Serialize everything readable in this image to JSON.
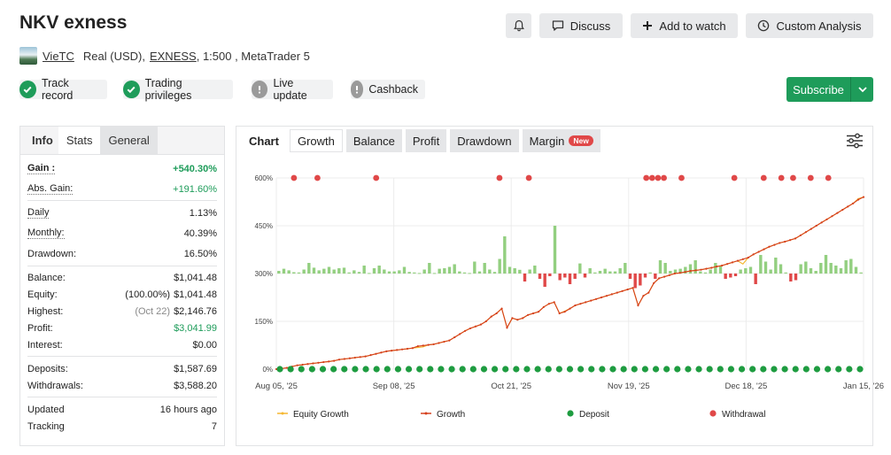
{
  "title": "NKV exness",
  "header_buttons": {
    "discuss": "Discuss",
    "add_to_watch": "Add to watch",
    "custom_analysis": "Custom Analysis"
  },
  "account": {
    "user": "VieTC",
    "type": "Real (USD),",
    "broker": "EXNESS",
    "leverage_platform": ", 1:500 , MetaTrader 5"
  },
  "badges": [
    {
      "label": "Track record",
      "status": "ok",
      "color": "#1e9c5a"
    },
    {
      "label": "Trading privileges",
      "status": "ok",
      "color": "#1e9c5a"
    },
    {
      "label": "Live update",
      "status": "warn",
      "color": "#9a9a9a"
    },
    {
      "label": "Cashback",
      "status": "warn",
      "color": "#9a9a9a"
    }
  ],
  "subscribe": {
    "label": "Subscribe"
  },
  "info_tabs": [
    "Info",
    "Stats",
    "General"
  ],
  "stats": {
    "gain": {
      "label": "Gain :",
      "value": "+540.30%"
    },
    "abs_gain": {
      "label": "Abs. Gain:",
      "value": "+191.60%"
    },
    "daily": {
      "label": "Daily",
      "value": "1.13%"
    },
    "monthly": {
      "label": "Monthly:",
      "value": "40.39%"
    },
    "drawdown": {
      "label": "Drawdown:",
      "value": "16.50%"
    },
    "balance": {
      "label": "Balance:",
      "value": "$1,041.48"
    },
    "equity": {
      "label": "Equity:",
      "pct": "(100.00%)",
      "value": "$1,041.48"
    },
    "highest": {
      "label": "Highest:",
      "date": "(Oct 22)",
      "value": "$2,146.76"
    },
    "profit": {
      "label": "Profit:",
      "value": "$3,041.99"
    },
    "interest": {
      "label": "Interest:",
      "value": "$0.00"
    },
    "deposits": {
      "label": "Deposits:",
      "value": "$1,587.69"
    },
    "withdrawals": {
      "label": "Withdrawals:",
      "value": "$3,588.20"
    },
    "updated": {
      "label": "Updated",
      "value": "16 hours ago"
    },
    "tracking": {
      "label": "Tracking",
      "value": "7"
    }
  },
  "chart_tabs": {
    "chart": "Chart",
    "growth": "Growth",
    "balance": "Balance",
    "profit": "Profit",
    "drawdown": "Drawdown",
    "margin": "Margin",
    "new_badge": "New"
  },
  "chart_data": {
    "type": "line",
    "x_tick_labels": [
      "Aug 05, '25",
      "Sep 08, '25",
      "Oct 21, '25",
      "Nov 19, '25",
      "Dec 18, '25",
      "Jan 15, '26"
    ],
    "y_tick_labels": [
      "0%",
      "150%",
      "300%",
      "450%",
      "600%"
    ],
    "ylim": [
      0,
      600
    ],
    "grid": true,
    "legend_position": "bottom",
    "legend": [
      "Equity Growth",
      "Growth",
      "Deposit",
      "Withdrawal"
    ],
    "colors": {
      "equity": "#f5b731",
      "growth": "#d5401d",
      "deposit": "#1e9c40",
      "withdrawal": "#e04848",
      "bar_pos": "#93cf80",
      "bar_neg": "#e04848"
    },
    "growth": [
      0,
      2,
      4,
      8,
      12,
      14,
      16,
      18,
      20,
      22,
      24,
      26,
      30,
      32,
      34,
      36,
      38,
      40,
      44,
      48,
      52,
      56,
      58,
      60,
      62,
      64,
      66,
      72,
      74,
      76,
      78,
      82,
      86,
      90,
      100,
      110,
      120,
      128,
      134,
      140,
      150,
      165,
      175,
      190,
      130,
      160,
      155,
      160,
      170,
      175,
      180,
      195,
      205,
      210,
      175,
      180,
      190,
      200,
      205,
      210,
      215,
      220,
      225,
      230,
      235,
      240,
      245,
      250,
      255,
      200,
      230,
      240,
      270,
      285,
      290,
      295,
      300,
      302,
      305,
      308,
      310,
      312,
      315,
      318,
      322,
      325,
      330,
      335,
      340,
      345,
      350,
      360,
      368,
      376,
      384,
      390,
      396,
      400,
      405,
      410,
      420,
      430,
      440,
      450,
      460,
      470,
      480,
      490,
      500,
      510,
      520,
      532,
      540
    ],
    "equity": [
      0,
      2,
      4,
      8,
      12,
      14,
      16,
      18,
      20,
      22,
      24,
      26,
      30,
      32,
      34,
      36,
      38,
      40,
      44,
      48,
      52,
      56,
      58,
      60,
      62,
      64,
      66,
      68,
      70,
      76,
      78,
      82,
      86,
      90,
      100,
      110,
      120,
      128,
      134,
      140,
      150,
      165,
      175,
      190,
      130,
      160,
      155,
      160,
      170,
      175,
      180,
      195,
      205,
      210,
      175,
      182,
      190,
      200,
      205,
      210,
      215,
      220,
      225,
      230,
      235,
      240,
      245,
      250,
      255,
      200,
      230,
      240,
      270,
      285,
      290,
      295,
      300,
      302,
      305,
      308,
      310,
      312,
      315,
      318,
      322,
      325,
      330,
      335,
      340,
      330,
      350,
      360,
      368,
      376,
      384,
      390,
      396,
      400,
      405,
      410,
      420,
      430,
      440,
      450,
      460,
      470,
      480,
      490,
      500,
      510,
      520,
      535,
      540
    ],
    "bars": [
      10,
      18,
      12,
      5,
      4,
      15,
      40,
      22,
      12,
      18,
      25,
      15,
      20,
      22,
      4,
      12,
      6,
      30,
      2,
      20,
      30,
      15,
      8,
      8,
      12,
      25,
      6,
      4,
      2,
      15,
      40,
      2,
      18,
      20,
      25,
      35,
      8,
      4,
      2,
      45,
      8,
      40,
      15,
      6,
      55,
      140,
      25,
      20,
      14,
      -30,
      15,
      30,
      -20,
      -50,
      -10,
      180,
      -25,
      -15,
      -40,
      -20,
      38,
      -15,
      20,
      4,
      10,
      18,
      8,
      8,
      20,
      40,
      -20,
      -55,
      -45,
      -15,
      4,
      -20,
      50,
      40,
      10,
      15,
      18,
      25,
      35,
      50,
      8,
      4,
      15,
      40,
      30,
      -20,
      -15,
      -10,
      15,
      20,
      25,
      -40,
      70,
      45,
      15,
      60,
      35,
      4,
      -30,
      -25,
      35,
      45,
      20,
      10,
      40,
      70,
      40,
      30,
      20,
      50,
      55,
      25,
      4
    ],
    "withdrawal_markers": [
      3,
      7,
      17,
      38,
      43,
      63,
      64,
      65,
      66,
      69,
      78,
      83,
      86,
      88,
      91,
      94
    ]
  },
  "legend_labels": {
    "equity": "Equity Growth",
    "growth": "Growth",
    "deposit": "Deposit",
    "withdrawal": "Withdrawal"
  }
}
